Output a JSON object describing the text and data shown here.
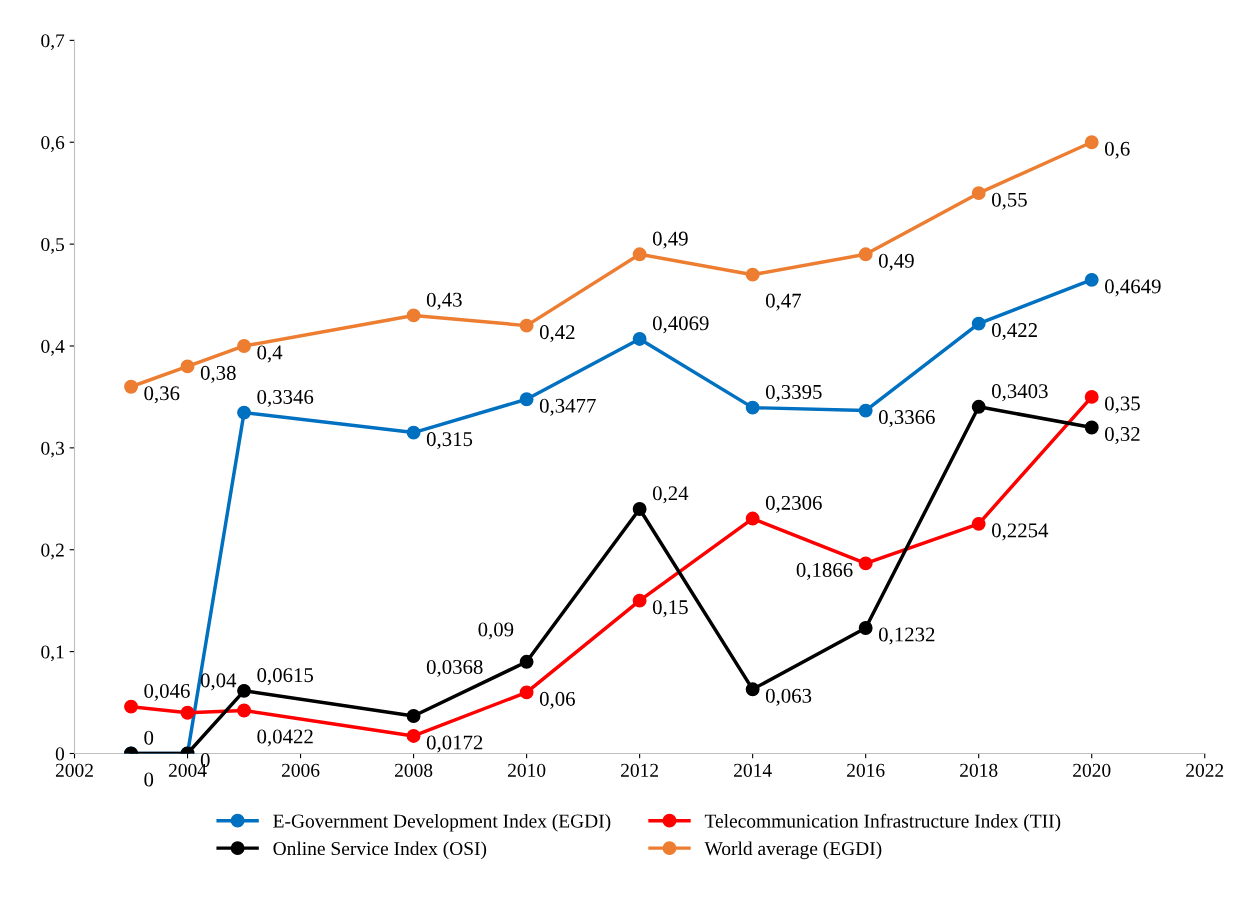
{
  "chart_data": {
    "type": "line",
    "x": [
      2003,
      2004,
      2005,
      2008,
      2010,
      2012,
      2014,
      2016,
      2018,
      2020
    ],
    "series": [
      {
        "name": "E-Government Development Index (EGDI)",
        "color": "#0070c0",
        "values": [
          0,
          0,
          0.3346,
          0.315,
          0.3477,
          0.4069,
          0.3395,
          0.3366,
          0.422,
          0.4649
        ],
        "value_labels": [
          "0",
          "0",
          "0,3346",
          "0,315",
          "0,3477",
          "0,4069",
          "0,3395",
          "0,3366",
          "0,422",
          "0,4649"
        ]
      },
      {
        "name": "Telecommunication Infrastructure Index (TII)",
        "color": "#ff0000",
        "values": [
          0.046,
          0.04,
          0.0422,
          0.0172,
          0.06,
          0.15,
          0.2306,
          0.1866,
          0.2254,
          0.35
        ],
        "value_labels": [
          "0,046",
          "0,04",
          "0,0422",
          "0,0172",
          "0,06",
          "0,15",
          "0,2306",
          "0,1866",
          "0,2254",
          "0,35"
        ]
      },
      {
        "name": "Online Service Index (OSI)",
        "color": "#000000",
        "values": [
          0,
          0,
          0.0615,
          0.0368,
          0.09,
          0.24,
          0.063,
          0.1232,
          0.3403,
          0.32
        ],
        "value_labels": [
          "0",
          null,
          "0,0615",
          "0,0368",
          "0,09",
          "0,24",
          "0,063",
          "0,1232",
          "0,3403",
          "0,32"
        ]
      },
      {
        "name": "World average (EGDI)",
        "color": "#ed7d31",
        "values": [
          0.36,
          0.38,
          0.4,
          0.43,
          0.42,
          0.49,
          0.47,
          0.49,
          0.55,
          0.6
        ],
        "value_labels": [
          "0,36",
          "0,38",
          "0,4",
          "0,43",
          "0,42",
          "0,49",
          "0,47",
          "0,49",
          "0,55",
          "0,6"
        ]
      }
    ],
    "xlim": [
      2002,
      2022
    ],
    "xticks": [
      2002,
      2004,
      2006,
      2008,
      2010,
      2012,
      2014,
      2016,
      2018,
      2020,
      2022
    ],
    "ylim": [
      0,
      0.7
    ],
    "yticks": [
      {
        "value": 0,
        "label": "0"
      },
      {
        "value": 0.1,
        "label": "0,1"
      },
      {
        "value": 0.2,
        "label": "0,2"
      },
      {
        "value": 0.3,
        "label": "0,3"
      },
      {
        "value": 0.4,
        "label": "0,4"
      },
      {
        "value": 0.5,
        "label": "0,5"
      },
      {
        "value": 0.6,
        "label": "0,6"
      },
      {
        "value": 0.7,
        "label": "0,7"
      }
    ],
    "grid": false,
    "legend": "bottom",
    "marker": "circle",
    "line_style": "solid"
  }
}
